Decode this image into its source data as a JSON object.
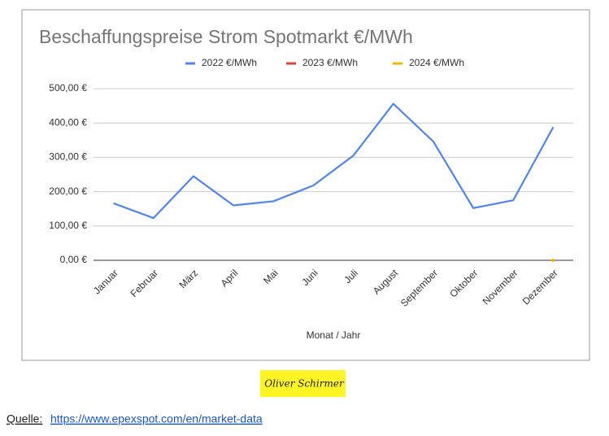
{
  "chart_data": {
    "type": "line",
    "title": "Beschaffungspreise Strom Spotmarkt €/MWh",
    "categories": [
      "Januar",
      "Februar",
      "März",
      "April",
      "Mai",
      "Juni",
      "Juli",
      "August",
      "September",
      "Oktober",
      "November",
      "Dezember"
    ],
    "series": [
      {
        "name": "2022 €/MWh",
        "color": "#4f86ec",
        "values": [
          166,
          123,
          245,
          160,
          172,
          218,
          305,
          456,
          346,
          152,
          175,
          388
        ]
      },
      {
        "name": "2023 €/MWh",
        "color": "#db4437",
        "values": [
          null,
          null,
          null,
          null,
          null,
          null,
          null,
          null,
          null,
          null,
          null,
          null
        ]
      },
      {
        "name": "2024 €/MWh",
        "color": "#f4b400",
        "values": [
          null,
          null,
          null,
          null,
          null,
          null,
          null,
          null,
          null,
          null,
          null,
          0
        ]
      }
    ],
    "ylim": [
      0,
      500
    ],
    "yticks": [
      {
        "value": 0,
        "label": "0,00 €"
      },
      {
        "value": 100,
        "label": "100,00 €"
      },
      {
        "value": 200,
        "label": "200,00 €"
      },
      {
        "value": 300,
        "label": "300,00 €"
      },
      {
        "value": 400,
        "label": "400,00 €"
      },
      {
        "value": 500,
        "label": "500,00 €"
      }
    ],
    "xlabel": "Monat / Jahr",
    "grid": true,
    "legend": "top"
  },
  "signature": "Oliver Schirmer",
  "source": {
    "label": "Quelle:",
    "url": "https://www.epexspot.com/en/market-data"
  }
}
